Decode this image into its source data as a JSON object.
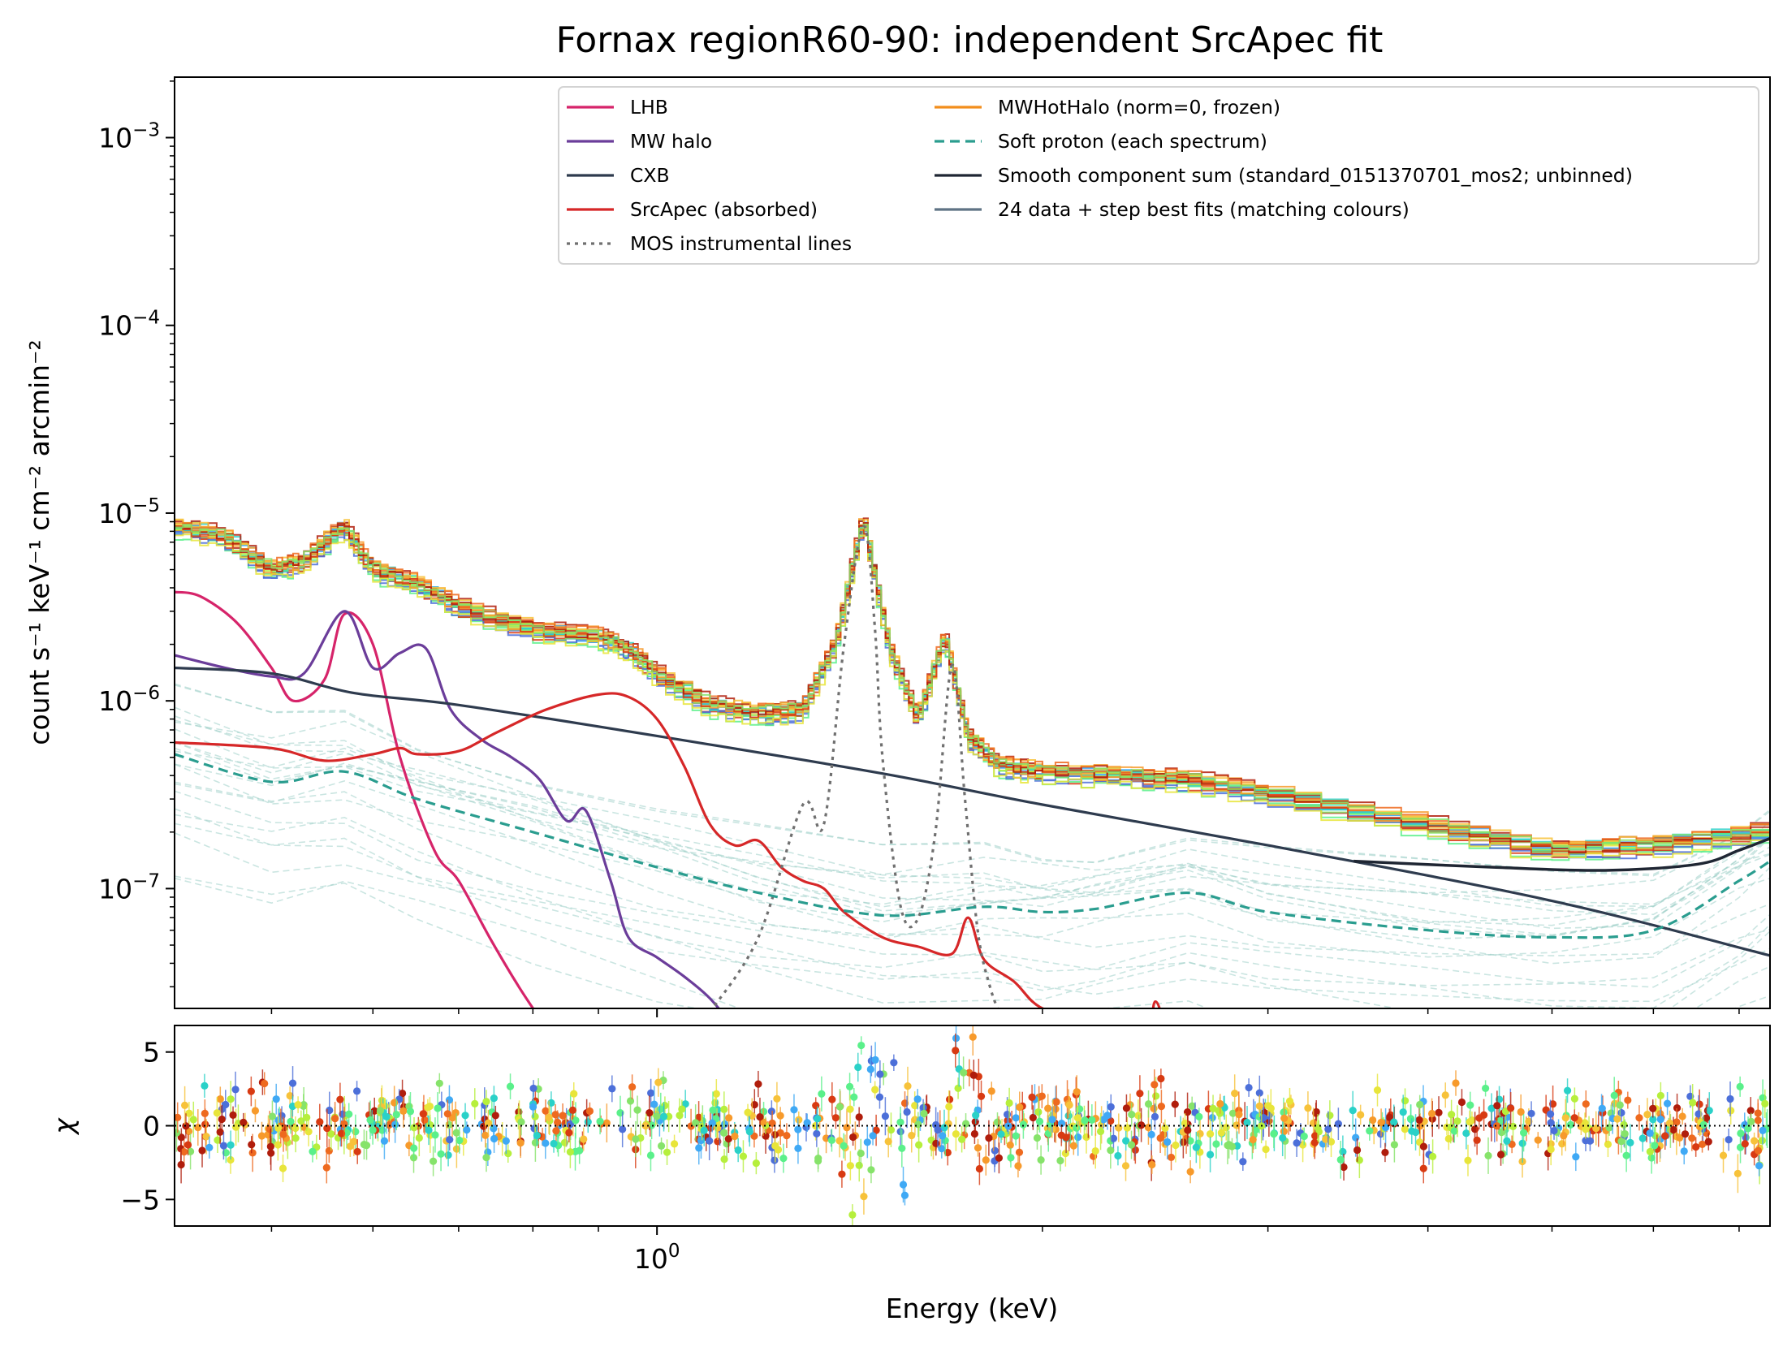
{
  "chart_data": [
    {
      "type": "line",
      "title": "Fornax regionR60-90: independent SrcApec fit",
      "xlabel": "Energy (keV)",
      "ylabel": "count s⁻¹ keV⁻¹ cm⁻² arcmin⁻²",
      "x_scale": "log",
      "y_scale": "log",
      "xlim": [
        0.42,
        7.4
      ],
      "ylim": [
        2.3e-08,
        0.0021
      ],
      "yticks": [
        {
          "value": 1e-07,
          "base": "10",
          "exp": "−7"
        },
        {
          "value": 1e-06,
          "base": "10",
          "exp": "−6"
        },
        {
          "value": 1e-05,
          "base": "10",
          "exp": "−5"
        },
        {
          "value": 0.0001,
          "base": "10",
          "exp": "−4"
        },
        {
          "value": 0.001,
          "base": "10",
          "exp": "−3"
        }
      ],
      "xticks": [
        {
          "value": 1.0,
          "base": "10",
          "exp": "0"
        }
      ],
      "legend_position": "top-right",
      "legend": [
        {
          "label": "LHB",
          "color": "#d6246a",
          "style": "solid"
        },
        {
          "label": "MW halo",
          "color": "#6b3d9a",
          "style": "solid"
        },
        {
          "label": "CXB",
          "color": "#2e3b4e",
          "style": "solid"
        },
        {
          "label": "SrcApec (absorbed)",
          "color": "#d62728",
          "style": "solid"
        },
        {
          "label": "MOS instrumental lines",
          "color": "#707070",
          "style": "dotted"
        },
        {
          "label": "MWHotHalo (norm=0, frozen)",
          "color": "#f28e1c",
          "style": "solid"
        },
        {
          "label": "Soft proton (each spectrum)",
          "color": "#2a9d8f",
          "style": "dashed"
        },
        {
          "label": "Smooth component sum (standard_0151370701_mos2; unbinned)",
          "color": "#1f2633",
          "style": "solid"
        },
        {
          "label": "24 data + step best fits (matching colours)",
          "color": "#5f7385",
          "style": "solid"
        }
      ],
      "series": [
        {
          "name": "LHB",
          "color": "#d6246a",
          "x": [
            0.42,
            0.44,
            0.47,
            0.5,
            0.52,
            0.55,
            0.57,
            0.6,
            0.63,
            0.67,
            0.7,
            0.74,
            0.78,
            0.82
          ],
          "y": [
            3.8e-06,
            3.6e-06,
            2.6e-06,
            1.5e-06,
            1e-06,
            1.3e-06,
            2.9e-06,
            2e-06,
            5e-07,
            1.6e-07,
            1.1e-07,
            5.5e-08,
            3e-08,
            1.8e-08
          ]
        },
        {
          "name": "MW halo",
          "color": "#6b3d9a",
          "x": [
            0.42,
            0.46,
            0.5,
            0.53,
            0.57,
            0.6,
            0.63,
            0.66,
            0.69,
            0.73,
            0.77,
            0.81,
            0.85,
            0.88,
            0.92,
            0.95,
            1.0,
            1.05,
            1.1,
            1.15
          ],
          "y": [
            1.75e-06,
            1.5e-06,
            1.35e-06,
            1.4e-06,
            3e-06,
            1.5e-06,
            1.8e-06,
            1.9e-06,
            9e-07,
            6.2e-07,
            5e-07,
            3.8e-07,
            2.3e-07,
            2.6e-07,
            1.1e-07,
            5.5e-08,
            4.3e-08,
            3.4e-08,
            2.6e-08,
            1.8e-08
          ]
        },
        {
          "name": "CXB",
          "color": "#2e3b4e",
          "x": [
            0.42,
            0.5,
            0.58,
            0.7,
            1.0,
            1.5,
            2.0,
            3.0,
            5.0,
            7.4
          ],
          "y": [
            1.5e-06,
            1.4e-06,
            1.1e-06,
            9.5e-07,
            6.5e-07,
            4.1e-07,
            2.8e-07,
            1.7e-07,
            8.6e-08,
            4.4e-08
          ]
        },
        {
          "name": "SrcApec (absorbed)",
          "color": "#d62728",
          "x": [
            0.42,
            0.5,
            0.55,
            0.6,
            0.63,
            0.65,
            0.7,
            0.75,
            0.82,
            0.9,
            0.95,
            1.0,
            1.05,
            1.1,
            1.15,
            1.2,
            1.25,
            1.3,
            1.35,
            1.4,
            1.5,
            1.6,
            1.7,
            1.75,
            1.8,
            1.9,
            2.0,
            2.2,
            2.4,
            2.45,
            2.5
          ],
          "y": [
            6e-07,
            5.6e-07,
            4.8e-07,
            5.2e-07,
            5.6e-07,
            5.2e-07,
            5.4e-07,
            6.8e-07,
            9e-07,
            1.08e-06,
            1.05e-06,
            8e-07,
            4.5e-07,
            2.2e-07,
            1.7e-07,
            1.8e-07,
            1.3e-07,
            1.1e-07,
            1e-07,
            7.5e-08,
            5.5e-08,
            4.9e-08,
            4.5e-08,
            7e-08,
            4.2e-08,
            3.2e-08,
            2.3e-08,
            2e-08,
            1.6e-08,
            2.5e-08,
            1.7e-08
          ]
        },
        {
          "name": "MOS instrumental lines",
          "color": "#707070",
          "x": [
            1.1,
            1.2,
            1.3,
            1.35,
            1.4,
            1.45,
            1.48,
            1.5,
            1.55,
            1.6,
            1.65,
            1.7,
            1.74,
            1.78,
            1.82,
            1.86
          ],
          "y": [
            2.2e-08,
            5.5e-08,
            2.8e-07,
            2.2e-07,
            2e-06,
            8.5e-06,
            2.4e-06,
            5e-07,
            8e-08,
            7e-08,
            2e-07,
            1.55e-06,
            3e-07,
            6e-08,
            3e-08,
            2e-08
          ]
        },
        {
          "name": "Soft proton (each spectrum)",
          "color": "#2a9d8f",
          "x": [
            0.42,
            0.5,
            0.57,
            0.65,
            0.8,
            1.0,
            1.2,
            1.5,
            1.8,
            2.0,
            2.2,
            2.6,
            3.0,
            4.0,
            5.0,
            6.0,
            7.0,
            7.4
          ],
          "y": [
            5.2e-07,
            3.7e-07,
            4.2e-07,
            3e-07,
            2e-07,
            1.3e-07,
            9.5e-08,
            7.2e-08,
            8e-08,
            7.5e-08,
            7.8e-08,
            9.5e-08,
            7.5e-08,
            6e-08,
            5.5e-08,
            6e-08,
            1.1e-07,
            1.4e-07
          ]
        },
        {
          "name": "Smooth component sum (standard_0151370701_mos2; unbinned)",
          "color": "#1f2633",
          "x": [
            3.5,
            4.5,
            5.5,
            6.5,
            7.0,
            7.4
          ],
          "y": [
            1.4e-07,
            1.3e-07,
            1.25e-07,
            1.35e-07,
            1.6e-07,
            1.85e-07
          ]
        },
        {
          "name": "24 data + step best fits (matching colours)",
          "color": "#5f7385",
          "x": [
            0.42,
            0.46,
            0.5,
            0.53,
            0.57,
            0.6,
            0.65,
            0.7,
            0.8,
            0.9,
            0.95,
            1.0,
            1.1,
            1.2,
            1.3,
            1.38,
            1.45,
            1.52,
            1.6,
            1.68,
            1.75,
            1.85,
            2.0,
            2.3,
            2.6,
            3.0,
            4.0,
            5.0,
            6.0,
            7.4
          ],
          "y": [
            8.5e-06,
            7.5e-06,
            5e-06,
            5.5e-06,
            8.5e-06,
            5e-06,
            4.2e-06,
            3.2e-06,
            2.4e-06,
            2.2e-06,
            1.9e-06,
            1.4e-06,
            9.5e-07,
            8.5e-07,
            9e-07,
            2e-06,
            9.5e-06,
            1.9e-06,
            8e-07,
            2.2e-06,
            6.5e-07,
            4.5e-07,
            4.2e-07,
            4e-07,
            3.8e-07,
            3.2e-07,
            2.2e-07,
            1.6e-07,
            1.7e-07,
            2e-07
          ]
        }
      ]
    },
    {
      "type": "scatter",
      "ylabel": "χ",
      "xlabel": "Energy (keV)",
      "x_scale": "log",
      "xlim": [
        0.42,
        7.4
      ],
      "ylim": [
        -6.8,
        6.8
      ],
      "yticks": [
        5,
        0,
        -5
      ],
      "ytick_labels": [
        "5",
        "0",
        "−5"
      ],
      "reference_line": 0,
      "description_of_points": "scattered residual points, roughly within ±3, with excursions up to about ±6 near the 1.49 and 1.74 keV instrumental lines"
    }
  ]
}
